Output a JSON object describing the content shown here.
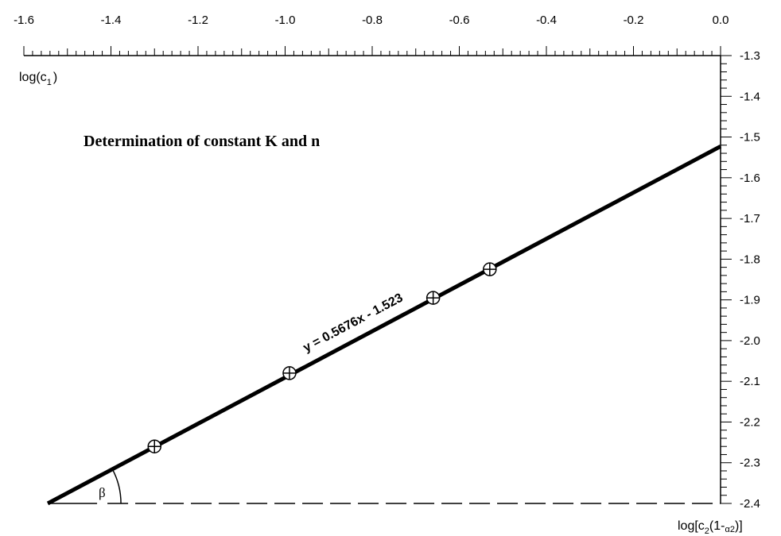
{
  "chart_data": {
    "type": "scatter",
    "title": "Determination of constant K and n",
    "xlabel": {
      "main": "log[c",
      "sub": "2",
      "mid": "(1-",
      "sub2": "α2",
      "end": ")]"
    },
    "ylabel": {
      "main": "log(c",
      "sub": "1",
      "end": ")"
    },
    "xlim": [
      -1.6,
      0.0
    ],
    "ylim": [
      -2.4,
      -1.3
    ],
    "x_axis_position": "top",
    "y_axis_position": "right",
    "x_ticks": [
      "-1.6",
      "-1.4",
      "-1.2",
      "-1.0",
      "-0.8",
      "-0.6",
      "-0.4",
      "-0.2",
      "0.0"
    ],
    "x_tick_values": [
      -1.6,
      -1.4,
      -1.2,
      -1.0,
      -0.8,
      -0.6,
      -0.4,
      -0.2,
      0.0
    ],
    "y_ticks": [
      "-1.3",
      "-1.4",
      "-1.5",
      "-1.6",
      "-1.7",
      "-1.8",
      "-1.9",
      "-2.0",
      "-2.1",
      "-2.2",
      "-2.3",
      "-2.4"
    ],
    "y_tick_values": [
      -1.3,
      -1.4,
      -1.5,
      -1.6,
      -1.7,
      -1.8,
      -1.9,
      -2.0,
      -2.1,
      -2.2,
      -2.3,
      -2.4
    ],
    "series": [
      {
        "points": [
          {
            "x": -1.3,
            "y": -2.26
          },
          {
            "x": -0.99,
            "y": -2.08
          },
          {
            "x": -0.66,
            "y": -1.895
          },
          {
            "x": -0.53,
            "y": -1.825
          }
        ]
      }
    ],
    "fit": {
      "slope": 0.5676,
      "intercept": -1.523,
      "equation": "y = 0.5676x - 1.523"
    },
    "baseline_y": -2.4,
    "angle_label": "β",
    "grid": false,
    "legend": "none"
  }
}
